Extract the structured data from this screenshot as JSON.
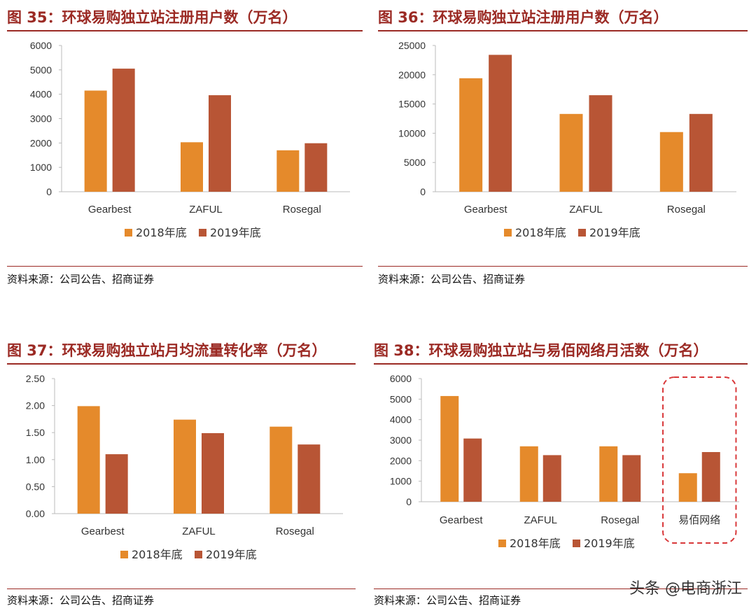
{
  "colors": {
    "series_2018": "#e58a2b",
    "series_2019": "#b85535",
    "accent": "#9b2a24",
    "highlight_box": "#d9383a"
  },
  "watermark": "头条 @电商浙江",
  "chart_data": [
    {
      "type": "bar",
      "title": "图 35：环球易购独立站注册用户数（万名）",
      "source": "资料来源：公司公告、招商证券",
      "categories": [
        "Gearbest",
        "ZAFUL",
        "Rosegal"
      ],
      "series": [
        {
          "name": "2018年底",
          "values": [
            4150,
            2030,
            1700
          ]
        },
        {
          "name": "2019年底",
          "values": [
            5050,
            3960,
            1990
          ]
        }
      ],
      "yticks": [
        "0",
        "1000",
        "2000",
        "3000",
        "4000",
        "5000",
        "6000"
      ],
      "ylim": [
        0,
        6000
      ],
      "legend": "bottom",
      "grid": false
    },
    {
      "type": "bar",
      "title": "图 36：环球易购独立站注册用户数（万名）",
      "source": "资料来源：公司公告、招商证券",
      "categories": [
        "Gearbest",
        "ZAFUL",
        "Rosegal"
      ],
      "series": [
        {
          "name": "2018年底",
          "values": [
            19400,
            13300,
            10200
          ]
        },
        {
          "name": "2019年底",
          "values": [
            23400,
            16500,
            13300
          ]
        }
      ],
      "yticks": [
        "0",
        "5000",
        "10000",
        "15000",
        "20000",
        "25000"
      ],
      "ylim": [
        0,
        25000
      ],
      "legend": "bottom",
      "grid": false
    },
    {
      "type": "bar",
      "title": "图 37：环球易购独立站月均流量转化率（万名）",
      "source": "资料来源：公司公告、招商证券",
      "categories": [
        "Gearbest",
        "ZAFUL",
        "Rosegal"
      ],
      "series": [
        {
          "name": "2018年底",
          "values": [
            1.99,
            1.74,
            1.61
          ]
        },
        {
          "name": "2019年底",
          "values": [
            1.1,
            1.49,
            1.28
          ]
        }
      ],
      "yticks": [
        "0.00",
        "0.50",
        "1.00",
        "1.50",
        "2.00",
        "2.50"
      ],
      "ylim": [
        0,
        2.5
      ],
      "legend": "bottom",
      "grid": false
    },
    {
      "type": "bar",
      "title": "图 38：环球易购独立站与易佰网络月活数（万名）",
      "source": "资料来源：公司公告、招商证券",
      "categories": [
        "Gearbest",
        "ZAFUL",
        "Rosegal",
        "易佰网络"
      ],
      "series": [
        {
          "name": "2018年底",
          "values": [
            5150,
            2700,
            2700,
            1390
          ]
        },
        {
          "name": "2019年底",
          "values": [
            3080,
            2270,
            2270,
            2420
          ]
        }
      ],
      "yticks": [
        "0",
        "1000",
        "2000",
        "3000",
        "4000",
        "5000",
        "6000"
      ],
      "ylim": [
        0,
        6000
      ],
      "legend": "bottom",
      "grid": false,
      "highlight_category": "易佰网络"
    }
  ]
}
